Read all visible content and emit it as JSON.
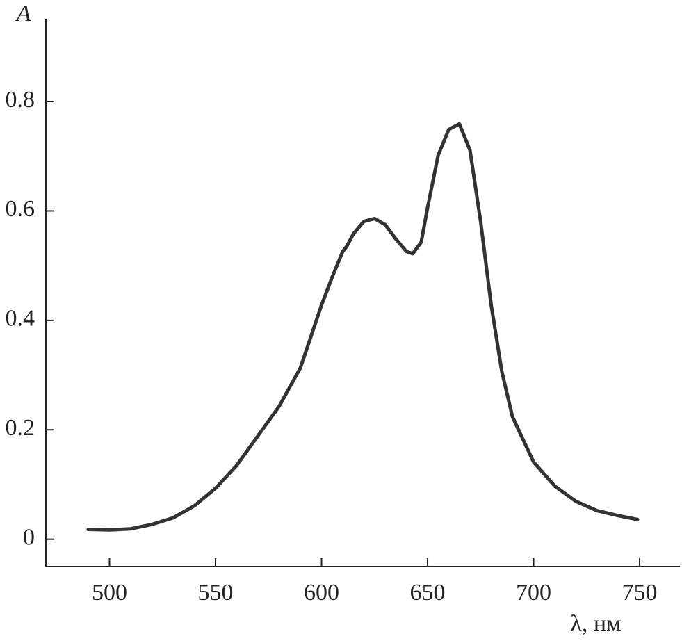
{
  "chart_data": {
    "type": "line",
    "x_label": "λ, нм",
    "y_label": "A",
    "x": [
      490,
      500,
      510,
      520,
      530,
      540,
      550,
      560,
      570,
      580,
      590,
      600,
      605,
      610,
      612,
      615,
      620,
      625,
      630,
      635,
      640,
      643,
      647,
      650,
      655,
      660,
      665,
      670,
      675,
      680,
      685,
      690,
      700,
      710,
      720,
      730,
      740,
      749
    ],
    "series": [
      {
        "color": "#333333",
        "values": [
          0.018,
          0.017,
          0.019,
          0.027,
          0.039,
          0.061,
          0.093,
          0.135,
          0.189,
          0.243,
          0.313,
          0.428,
          0.479,
          0.526,
          0.536,
          0.558,
          0.581,
          0.586,
          0.575,
          0.549,
          0.526,
          0.522,
          0.543,
          0.606,
          0.702,
          0.749,
          0.759,
          0.711,
          0.581,
          0.428,
          0.307,
          0.224,
          0.141,
          0.097,
          0.069,
          0.052,
          0.043,
          0.036
        ]
      }
    ],
    "xlim": [
      470,
      769
    ],
    "xticks": [
      500,
      550,
      600,
      650,
      700,
      750
    ],
    "ylim": [
      -0.05,
      0.95
    ],
    "yticks": [
      0,
      0.2,
      0.4,
      0.6,
      0.8
    ],
    "grid": false
  }
}
